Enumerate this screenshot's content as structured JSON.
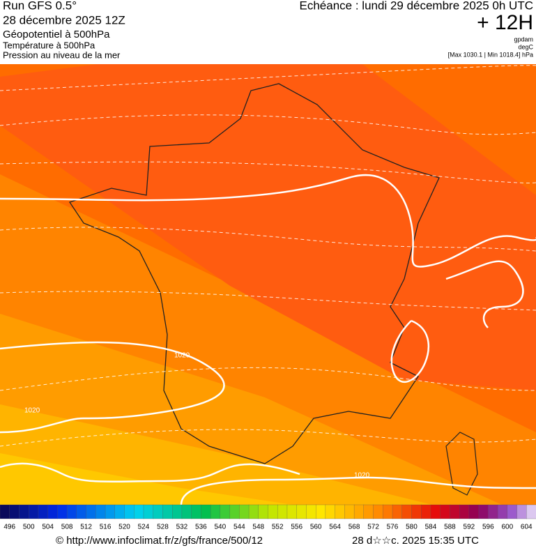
{
  "header": {
    "run": "Run GFS 0.5°",
    "date": "28 décembre 2025 12Z",
    "field1": "Géopotentiel à 500hPa",
    "field2": "Température à 500hPa",
    "field3": "Pression au niveau de la mer",
    "echeance": "Echéance : lundi 29 décembre 2025 0h UTC",
    "step": "+ 12H",
    "unit1": "gpdam",
    "unit2": "degC",
    "minmax": "[Max 1030.1 | Min 1018.4] hPa"
  },
  "map": {
    "isobar_labels": [
      "1020",
      "1020",
      "1020"
    ]
  },
  "legend": {
    "labels": [
      496,
      500,
      504,
      508,
      512,
      516,
      520,
      524,
      528,
      532,
      536,
      540,
      544,
      548,
      552,
      556,
      560,
      564,
      568,
      572,
      576,
      580,
      584,
      588,
      592,
      596,
      600,
      604
    ]
  },
  "footer": {
    "url": "© http://www.infoclimat.fr/z/gfs/france/500/12",
    "timestamp": "28 d☆☆c. 2025 15:35 UTC"
  }
}
